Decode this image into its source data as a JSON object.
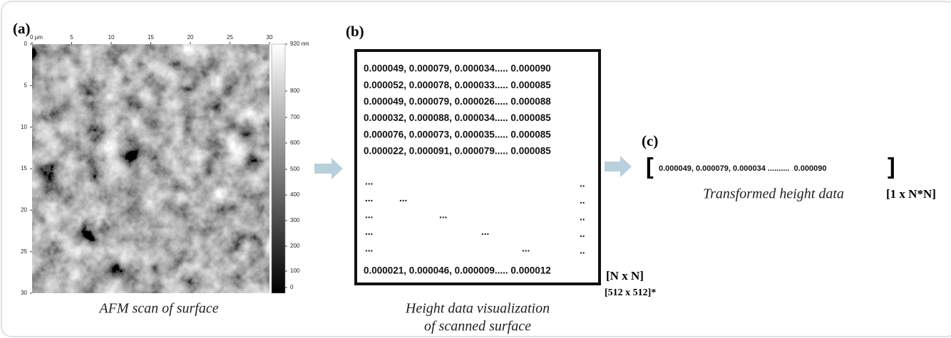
{
  "panel_a": {
    "label": "(a)",
    "x_ticks": [
      "0 µm",
      5,
      10,
      15,
      20,
      25,
      30
    ],
    "y_ticks": [
      0,
      5,
      10,
      15,
      20,
      25,
      30
    ],
    "colorbar_ticks": [
      "920 nm",
      800,
      700,
      600,
      500,
      400,
      300,
      200,
      100,
      0
    ],
    "caption": "AFM scan of surface"
  },
  "panel_b": {
    "label": "(b)",
    "rows": [
      "0.000049, 0.000079, 0.000034..... 0.000090",
      "0.000052, 0.000078, 0.000033..... 0.000085",
      "0.000049, 0.000079, 0.000026..... 0.000088",
      "0.000032, 0.000088, 0.000034..... 0.000085",
      "0.000076, 0.000073, 0.000035..... 0.000085",
      "0.000022, 0.000091, 0.000079..... 0.000085"
    ],
    "ellipsis_rows": [
      {
        "left": "...",
        "right": ".."
      },
      {
        "left": "...",
        "middle": "...",
        "right": ".."
      },
      {
        "left": "...",
        "middle": "...",
        "right": ".."
      },
      {
        "left": "...",
        "middle": "...",
        "right": ".."
      },
      {
        "left": "...",
        "middle": "...",
        "right": ".."
      }
    ],
    "last_row": "0.000021, 0.000046, 0.000009..... 0.000012",
    "size_label": "[N x N]",
    "size_example": "[512 x 512]*",
    "caption_lines": [
      "Height data visualization",
      "of scanned surface"
    ]
  },
  "panel_c": {
    "label": "(c)",
    "open_bracket": "[",
    "vector": "0.000049, 0.000079, 0.000034 ..........  0.000090",
    "close_bracket": "]",
    "caption": "Transformed height data",
    "size_label": "[1 x N*N]"
  }
}
